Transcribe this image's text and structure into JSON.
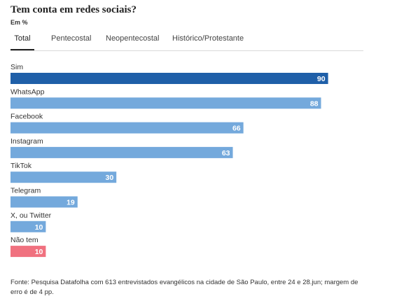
{
  "title": "Tem conta em redes sociais?",
  "subtitle": "Em %",
  "tabs": [
    "Total",
    "Pentecostal",
    "Neopentecostal",
    "Histórico/Protestante"
  ],
  "active_tab": "Total",
  "colors": {
    "primary": "#1f5fa8",
    "secondary": "#74a9dc",
    "none": "#f0717f"
  },
  "chart_data": {
    "type": "bar",
    "orientation": "horizontal",
    "categories": [
      "Sim",
      "WhatsApp",
      "Facebook",
      "Instagram",
      "TikTok",
      "Telegram",
      "X, ou Twitter",
      "Não tem"
    ],
    "values": [
      90,
      88,
      66,
      63,
      30,
      19,
      10,
      10
    ],
    "title": "Tem conta em redes sociais?",
    "subtitle": "Em %",
    "xlim": [
      0,
      100
    ],
    "grid": false,
    "data_labels": true
  },
  "footer": "Fonte: Pesquisa Datafolha com 613 entrevistados evangélicos na cidade de São Paulo, entre 24 e 28.jun; margem de erro é de 4 pp."
}
